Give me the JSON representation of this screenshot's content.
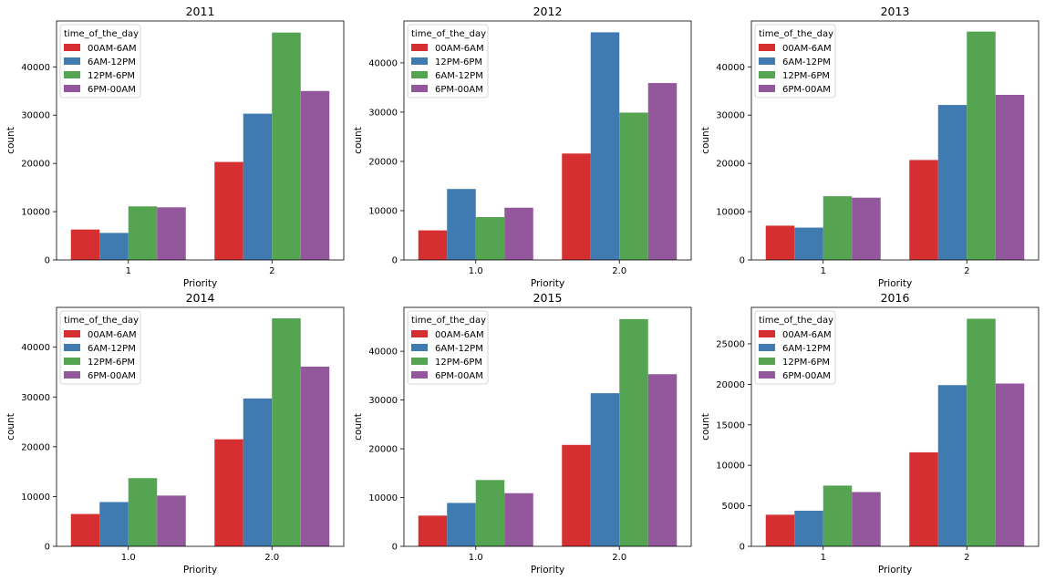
{
  "legend_title": "time_of_the_day",
  "colors": {
    "red": "#d62f32",
    "blue": "#3f7ab0",
    "green": "#55a452",
    "purple": "#93579c"
  },
  "chart_data": [
    {
      "type": "bar",
      "title": "2011",
      "xlabel": "Priority",
      "ylabel": "count",
      "categories": [
        "1",
        "2"
      ],
      "ylim": [
        0,
        49500
      ],
      "yticks": [
        0,
        10000,
        20000,
        30000,
        40000
      ],
      "legend_placement": "top-left",
      "series": [
        {
          "name": "00AM-6AM",
          "color": "#d62f32",
          "values": [
            6300,
            20300
          ]
        },
        {
          "name": "6AM-12PM",
          "color": "#3f7ab0",
          "values": [
            5600,
            30300
          ]
        },
        {
          "name": "12PM-6PM",
          "color": "#55a452",
          "values": [
            11100,
            47100
          ]
        },
        {
          "name": "6PM-00AM",
          "color": "#93579c",
          "values": [
            10900,
            35000
          ]
        }
      ]
    },
    {
      "type": "bar",
      "title": "2012",
      "xlabel": "Priority",
      "ylabel": "count",
      "categories": [
        "1.0",
        "2.0"
      ],
      "ylim": [
        0,
        48500
      ],
      "yticks": [
        0,
        10000,
        20000,
        30000,
        40000
      ],
      "legend_placement": "top-left",
      "series": [
        {
          "name": "00AM-6AM",
          "color": "#d62f32",
          "values": [
            6000,
            21600
          ]
        },
        {
          "name": "12PM-6PM",
          "color": "#3f7ab0",
          "values": [
            14400,
            46200
          ]
        },
        {
          "name": "6AM-12PM",
          "color": "#55a452",
          "values": [
            8700,
            29900
          ]
        },
        {
          "name": "6PM-00AM",
          "color": "#93579c",
          "values": [
            10600,
            35900
          ]
        }
      ]
    },
    {
      "type": "bar",
      "title": "2013",
      "xlabel": "Priority",
      "ylabel": "count",
      "categories": [
        "1",
        "2"
      ],
      "ylim": [
        0,
        49500
      ],
      "yticks": [
        0,
        10000,
        20000,
        30000,
        40000
      ],
      "legend_placement": "top-left",
      "series": [
        {
          "name": "00AM-6AM",
          "color": "#d62f32",
          "values": [
            7100,
            20700
          ]
        },
        {
          "name": "6AM-12PM",
          "color": "#3f7ab0",
          "values": [
            6700,
            32100
          ]
        },
        {
          "name": "12PM-6PM",
          "color": "#55a452",
          "values": [
            13200,
            47300
          ]
        },
        {
          "name": "6PM-00AM",
          "color": "#93579c",
          "values": [
            12900,
            34200
          ]
        }
      ]
    },
    {
      "type": "bar",
      "title": "2014",
      "xlabel": "Priority",
      "ylabel": "count",
      "categories": [
        "1.0",
        "2.0"
      ],
      "ylim": [
        0,
        48000
      ],
      "yticks": [
        0,
        10000,
        20000,
        30000,
        40000
      ],
      "legend_placement": "top-left",
      "series": [
        {
          "name": "00AM-6AM",
          "color": "#d62f32",
          "values": [
            6500,
            21500
          ]
        },
        {
          "name": "6AM-12PM",
          "color": "#3f7ab0",
          "values": [
            8900,
            29700
          ]
        },
        {
          "name": "12PM-6PM",
          "color": "#55a452",
          "values": [
            13700,
            45800
          ]
        },
        {
          "name": "6PM-00AM",
          "color": "#93579c",
          "values": [
            10200,
            36100
          ]
        }
      ]
    },
    {
      "type": "bar",
      "title": "2015",
      "xlabel": "Priority",
      "ylabel": "count",
      "categories": [
        "1.0",
        "2.0"
      ],
      "ylim": [
        0,
        49000
      ],
      "yticks": [
        0,
        10000,
        20000,
        30000,
        40000
      ],
      "legend_placement": "top-left",
      "series": [
        {
          "name": "00AM-6AM",
          "color": "#d62f32",
          "values": [
            6300,
            20800
          ]
        },
        {
          "name": "6AM-12PM",
          "color": "#3f7ab0",
          "values": [
            8900,
            31400
          ]
        },
        {
          "name": "12PM-6PM",
          "color": "#55a452",
          "values": [
            13600,
            46600
          ]
        },
        {
          "name": "6PM-00AM",
          "color": "#93579c",
          "values": [
            10900,
            35300
          ]
        }
      ]
    },
    {
      "type": "bar",
      "title": "2016",
      "xlabel": "Priority",
      "ylabel": "count",
      "categories": [
        "1",
        "2"
      ],
      "ylim": [
        0,
        29500
      ],
      "yticks": [
        0,
        5000,
        10000,
        15000,
        20000,
        25000
      ],
      "legend_placement": "top-left",
      "series": [
        {
          "name": "00AM-6AM",
          "color": "#d62f32",
          "values": [
            3900,
            11600
          ]
        },
        {
          "name": "6AM-12PM",
          "color": "#3f7ab0",
          "values": [
            4400,
            19900
          ]
        },
        {
          "name": "12PM-6PM",
          "color": "#55a452",
          "values": [
            7500,
            28100
          ]
        },
        {
          "name": "6PM-00AM",
          "color": "#93579c",
          "values": [
            6700,
            20100
          ]
        }
      ]
    }
  ]
}
